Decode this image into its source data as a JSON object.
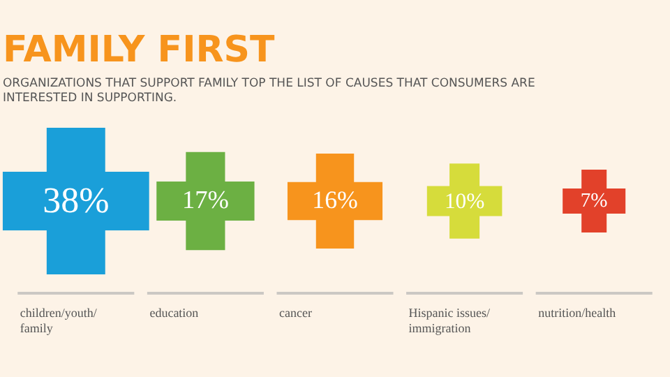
{
  "chart_data": {
    "type": "other",
    "title": "FAMILY FIRST",
    "subtitle": "ORGANIZATIONS THAT SUPPORT FAMILY TOP THE LIST OF CAUSES THAT CONSUMERS ARE INTERESTED IN SUPPORTING.",
    "categories": [
      "children/youth/family",
      "education",
      "cancer",
      "Hispanic issues/immigration",
      "nutrition/health"
    ],
    "values": [
      38,
      17,
      16,
      10,
      7
    ],
    "colors": [
      "#1a9fd9",
      "#6cb043",
      "#f7941d",
      "#d6dc3b",
      "#e2412a"
    ],
    "value_labels": [
      "38%",
      "17%",
      "16%",
      "10%",
      "7%"
    ]
  }
}
